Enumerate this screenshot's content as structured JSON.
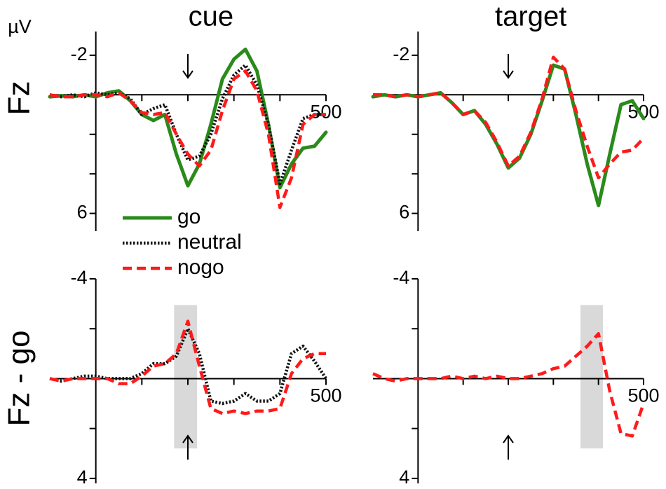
{
  "chart_data": [
    {
      "type": "line",
      "title": "cue",
      "ylabel": "Fz",
      "yunit": "µV",
      "legend": "lower-left",
      "yinvert": true,
      "xlim": [
        -100,
        500
      ],
      "xticks": [
        500
      ],
      "xminorticks": [
        100,
        200,
        300,
        400
      ],
      "ylim": [
        -3.2,
        6.9
      ],
      "yticks": [
        -2,
        6
      ],
      "yminorticks": [
        2,
        4
      ],
      "arrow_x": 200,
      "arrow_dir": "down",
      "x": [
        -100,
        -75,
        -50,
        -25,
        0,
        25,
        50,
        75,
        100,
        125,
        150,
        175,
        200,
        225,
        250,
        275,
        300,
        325,
        350,
        375,
        400,
        425,
        450,
        475,
        500
      ],
      "series": [
        {
          "name": "go",
          "color": "#2a8a1a",
          "style": "solid",
          "values": [
            0.1,
            0.05,
            0.1,
            0,
            0.1,
            -0.1,
            -0.2,
            0.3,
            1.0,
            1.3,
            1.0,
            3.0,
            4.6,
            3.5,
            1.5,
            -0.8,
            -1.8,
            -2.3,
            -1.2,
            1.5,
            4.7,
            3.5,
            2.7,
            2.6,
            1.9
          ]
        },
        {
          "name": "neutral",
          "color": "#111111",
          "style": "dotted",
          "values": [
            0,
            0.1,
            0,
            0.1,
            -0.1,
            0,
            -0.1,
            0.2,
            1.0,
            0.7,
            0.5,
            2.0,
            3.3,
            3.1,
            2.0,
            0.2,
            -1.0,
            -1.5,
            -0.5,
            1.5,
            4.5,
            2.8,
            1.2,
            1.0,
            1.0
          ]
        },
        {
          "name": "nogo",
          "color": "#ff1a1a",
          "style": "dashed",
          "values": [
            0,
            0.1,
            0.1,
            0,
            0,
            0.1,
            -0.1,
            0.3,
            0.9,
            1.0,
            0.9,
            2.0,
            3.0,
            3.6,
            2.8,
            0.8,
            -0.8,
            -1.2,
            -0.2,
            2.0,
            5.7,
            4.2,
            1.5,
            1.0,
            1.0
          ]
        }
      ]
    },
    {
      "type": "line",
      "title": "target",
      "yinvert": true,
      "xlim": [
        -100,
        500
      ],
      "xticks": [
        500
      ],
      "xminorticks": [
        100,
        200,
        300,
        400
      ],
      "ylim": [
        -3.2,
        6.9
      ],
      "yticks": [
        -2,
        6
      ],
      "yminorticks": [
        2,
        4
      ],
      "arrow_x": 200,
      "arrow_dir": "down",
      "x": [
        -100,
        -75,
        -50,
        -25,
        0,
        25,
        50,
        75,
        100,
        125,
        150,
        175,
        200,
        225,
        250,
        275,
        300,
        325,
        350,
        375,
        400,
        425,
        450,
        475,
        500
      ],
      "series": [
        {
          "color": "#2a8a1a",
          "style": "solid",
          "values": [
            0.1,
            0,
            0.1,
            0,
            0.1,
            0,
            -0.1,
            0.4,
            1.0,
            0.8,
            1.5,
            2.5,
            3.7,
            3.2,
            2.0,
            0.3,
            -1.5,
            -1.3,
            1.0,
            3.5,
            5.6,
            3.0,
            0.5,
            0.3,
            1.2
          ]
        },
        {
          "color": "#ff1a1a",
          "style": "dashed",
          "values": [
            0,
            0,
            0.1,
            0,
            0.1,
            0,
            -0.1,
            0.4,
            1.0,
            0.8,
            1.4,
            2.4,
            3.6,
            3.1,
            1.9,
            0.2,
            -1.9,
            -1.3,
            0.8,
            2.6,
            4.2,
            3.5,
            2.9,
            2.8,
            2.2
          ]
        }
      ]
    },
    {
      "type": "line",
      "ylabel": "Fz - go",
      "yinvert": true,
      "xlim": [
        -100,
        500
      ],
      "xticks": [
        500
      ],
      "xminorticks": [
        100,
        200,
        300,
        400
      ],
      "ylim": [
        -4,
        4.2
      ],
      "yticks": [
        -4,
        4
      ],
      "yminorticks": [
        -2,
        2
      ],
      "arrow_x": 200,
      "arrow_dir": "up",
      "highlight": {
        "x": [
          170,
          220
        ],
        "y": [
          -2.95,
          2.8
        ]
      },
      "x": [
        -100,
        -75,
        -50,
        -25,
        0,
        25,
        50,
        75,
        100,
        125,
        150,
        175,
        200,
        225,
        250,
        275,
        300,
        325,
        350,
        375,
        400,
        425,
        450,
        475,
        500
      ],
      "series": [
        {
          "color": "#111111",
          "style": "dotted",
          "values": [
            0,
            0.1,
            0,
            -0.1,
            -0.1,
            0,
            0,
            0,
            -0.2,
            -0.6,
            -0.6,
            -0.9,
            -2.0,
            -1.0,
            0.9,
            1.0,
            0.9,
            0.6,
            0.9,
            0.9,
            0.6,
            -1.0,
            -1.3,
            -0.7,
            0
          ]
        },
        {
          "color": "#ff1a1a",
          "style": "dashed",
          "values": [
            0,
            0.1,
            0,
            0,
            0,
            0,
            0.2,
            0.2,
            -0.1,
            -0.5,
            -0.6,
            -1.0,
            -2.3,
            -0.5,
            1.2,
            1.4,
            1.3,
            1.4,
            1.3,
            1.3,
            1.2,
            -0.2,
            -0.8,
            -1.0,
            -1.0
          ]
        }
      ]
    },
    {
      "type": "line",
      "yinvert": true,
      "xlim": [
        -100,
        500
      ],
      "xticks": [
        500
      ],
      "xminorticks": [
        100,
        200,
        300,
        400
      ],
      "ylim": [
        -4,
        4.2
      ],
      "yticks": [
        -4,
        4
      ],
      "yminorticks": [
        -2,
        2
      ],
      "arrow_x": 200,
      "arrow_dir": "up",
      "highlight": {
        "x": [
          360,
          410
        ],
        "y": [
          -2.95,
          2.8
        ]
      },
      "x": [
        -100,
        -75,
        -50,
        -25,
        0,
        25,
        50,
        75,
        100,
        125,
        150,
        175,
        200,
        225,
        250,
        275,
        300,
        325,
        350,
        375,
        400,
        425,
        450,
        475,
        500
      ],
      "series": [
        {
          "color": "#ff1a1a",
          "style": "dashed",
          "values": [
            -0.2,
            0,
            0.1,
            0,
            0,
            0,
            0,
            -0.1,
            0,
            -0.1,
            0,
            -0.1,
            0,
            0,
            -0.1,
            -0.2,
            -0.4,
            -0.5,
            -0.9,
            -1.3,
            -1.8,
            0.5,
            2.2,
            2.3,
            1.0
          ]
        }
      ]
    }
  ]
}
